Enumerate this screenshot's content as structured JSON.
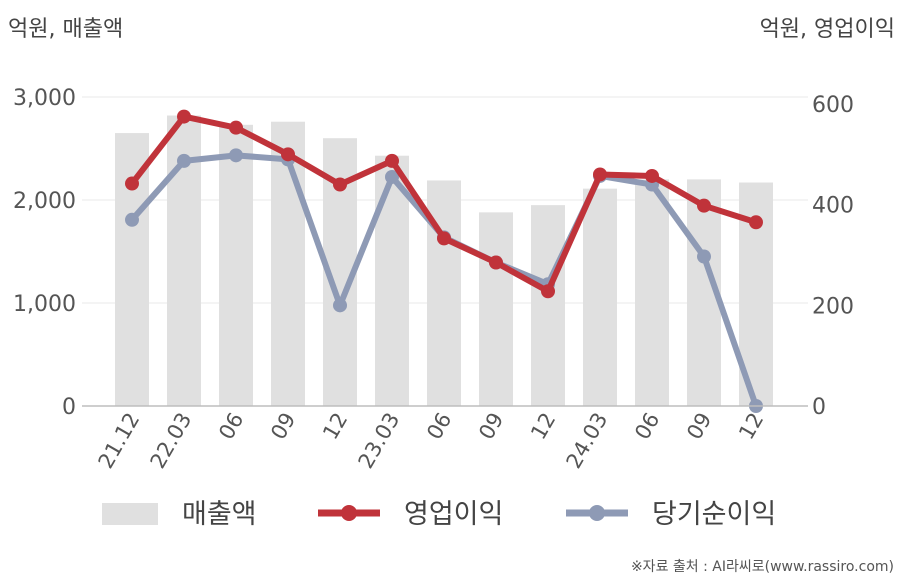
{
  "chart_data": {
    "type": "bar+line",
    "categories": [
      "21.12",
      "22.03",
      "06",
      "09",
      "12",
      "23.03",
      "06",
      "09",
      "12",
      "24.03",
      "06",
      "09",
      "12"
    ],
    "left_axis": {
      "unit": "억원, 매출액",
      "ylim": [
        0,
        3000
      ],
      "ticks": [
        0,
        1000,
        2000,
        3000
      ],
      "tick_labels": [
        "0",
        "1,000",
        "2,000",
        "3,000"
      ]
    },
    "right_axis": {
      "unit": "억원, 영업이익",
      "ylim": [
        0,
        600
      ],
      "ticks": [
        0,
        200,
        400,
        600
      ],
      "tick_labels": [
        "0",
        "200",
        "400",
        "600"
      ]
    },
    "series": [
      {
        "name": "매출액",
        "kind": "bar",
        "axis": "left",
        "color": "#e0e0e0",
        "values": [
          2650,
          2820,
          2730,
          2760,
          2600,
          2430,
          2190,
          1880,
          1950,
          2110,
          2200,
          2200,
          2170
        ]
      },
      {
        "name": "영업이익",
        "kind": "line",
        "axis": "right",
        "color": "#c0333a",
        "values": [
          442,
          575,
          553,
          500,
          440,
          487,
          333,
          285,
          228,
          460,
          457,
          398,
          365
        ]
      },
      {
        "name": "당기순이익",
        "kind": "line",
        "axis": "right",
        "color": "#8e9ab5",
        "values": [
          370,
          487,
          498,
          490,
          200,
          455,
          335,
          285,
          242,
          457,
          440,
          297,
          0
        ]
      }
    ],
    "grid": true,
    "legend_position": "bottom",
    "source": "※자료 출처 : AI라씨로(www.rassiro.com)"
  }
}
